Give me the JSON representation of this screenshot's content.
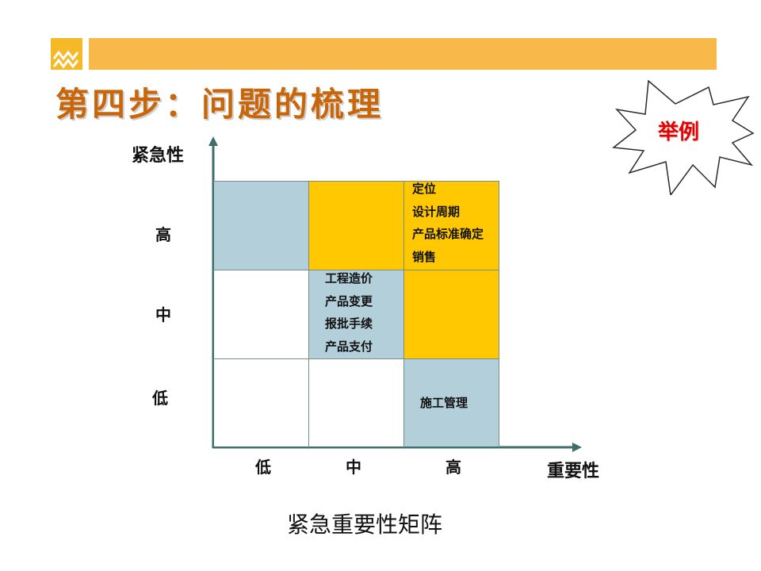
{
  "slide": {
    "title": "第四步：问题的梳理",
    "badge": "举例",
    "caption": "紧急重要性矩阵"
  },
  "axes": {
    "y_label": "紧急性",
    "x_label": "重要性",
    "y_ticks": [
      "高",
      "中",
      "低"
    ],
    "x_ticks": [
      "低",
      "中",
      "高"
    ]
  },
  "matrix": {
    "top_right_items": [
      "定位",
      "设计周期",
      "产品标准确定",
      "销售"
    ],
    "middle_center_items": [
      "工程造价",
      "产品变更",
      "报批手续",
      "产品支付"
    ],
    "bottom_right_item": "施工管理"
  },
  "colors": {
    "banner": "#F8B84A",
    "logo": "#F5B927",
    "title": "#C9660A",
    "badge_text": "#E60000",
    "cell_blue": "#B3CFDA",
    "cell_gold": "#FFC800",
    "axis": "#3F6F6C"
  },
  "icons": {
    "logo": "logo-icon",
    "badge": "starburst-shape"
  }
}
